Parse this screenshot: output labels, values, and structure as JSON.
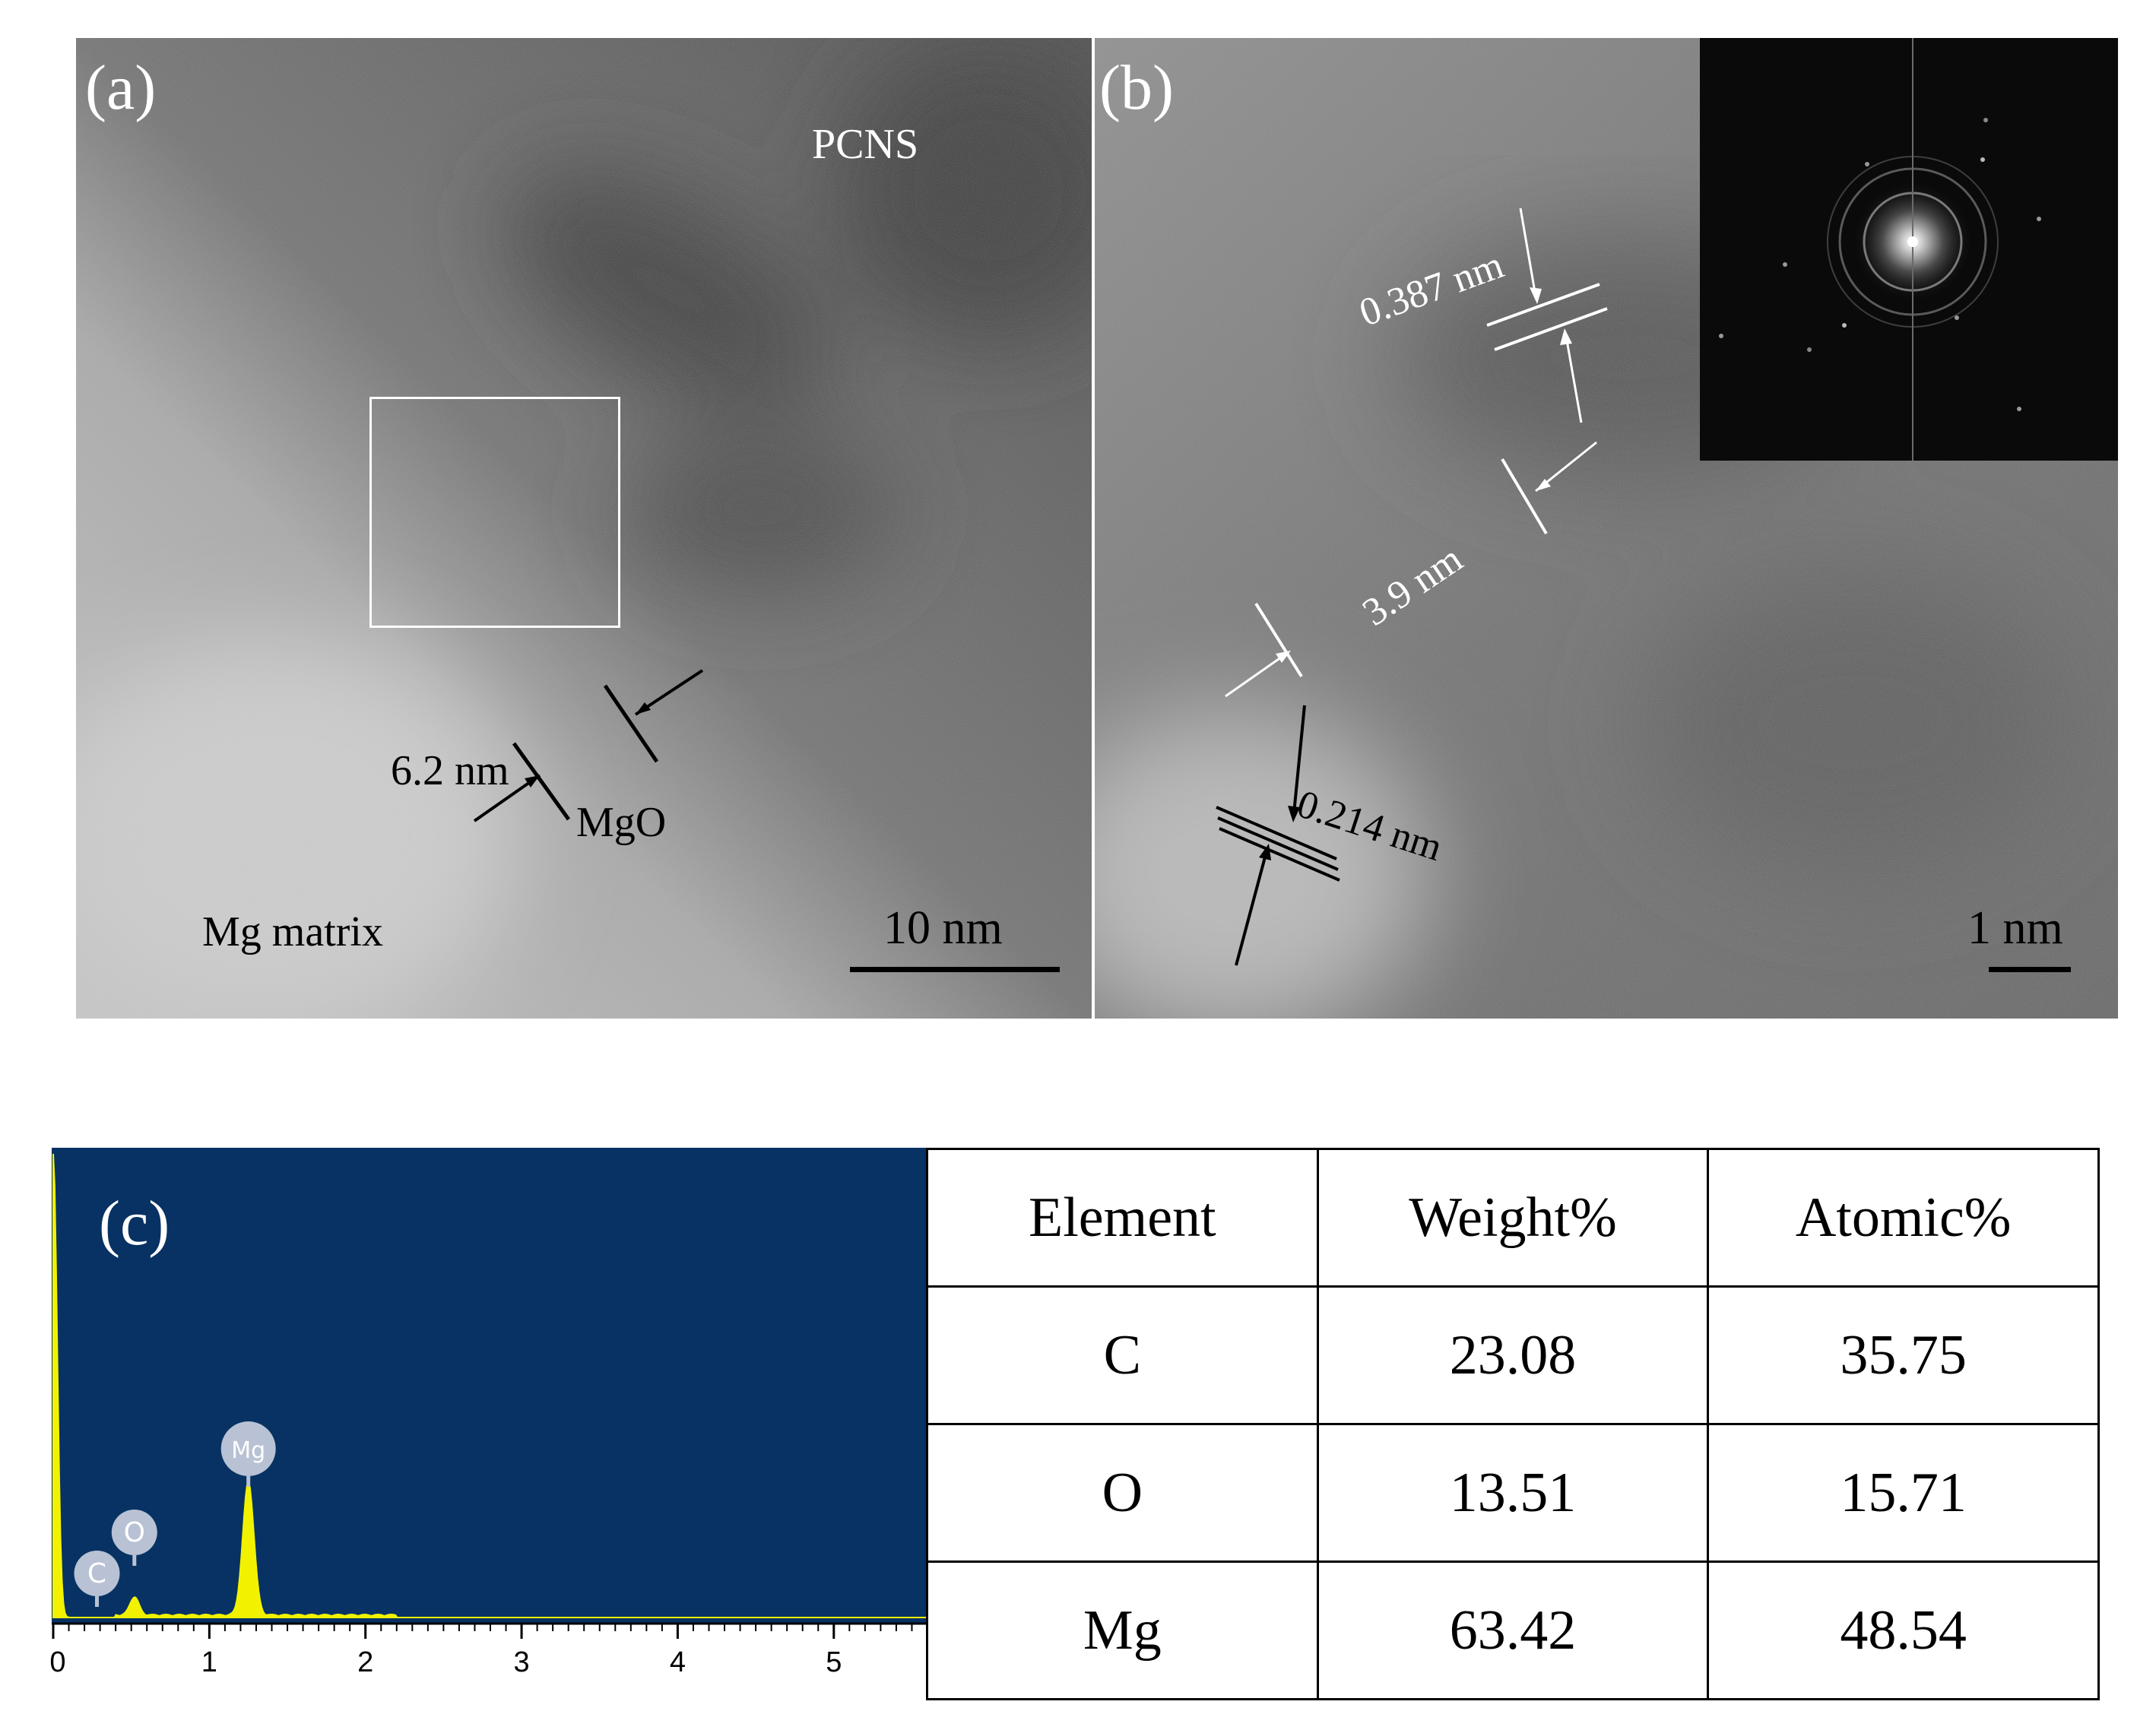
{
  "panel_a": {
    "label": "(a)",
    "pcns_label": "PCNS",
    "thickness_label": "6.2 nm",
    "oxide_label": "MgO",
    "matrix_label": "Mg matrix",
    "scale_bar_label": "10 nm"
  },
  "panel_b": {
    "label": "(b)",
    "spacing_top": "0.387 nm",
    "thickness_label": "3.9 nm",
    "spacing_bottom": "0.214 nm",
    "scale_bar_label": "1 nm"
  },
  "panel_c": {
    "label": "(c)",
    "chart_data": {
      "type": "line",
      "x_ticks": [
        "0",
        "1",
        "2",
        "3",
        "4",
        "5"
      ],
      "xlim": [
        0,
        5.6
      ],
      "peaks": [
        {
          "element": "C",
          "energy": 0.28
        },
        {
          "element": "O",
          "energy": 0.52
        },
        {
          "element": "Mg",
          "energy": 1.25
        }
      ],
      "background_color": "#073263",
      "spectrum_color": "#f2f200"
    }
  },
  "table": {
    "headers": [
      "Element",
      "Weight%",
      "Atomic%"
    ],
    "rows": [
      [
        "C",
        "23.08",
        "35.75"
      ],
      [
        "O",
        "13.51",
        "15.71"
      ],
      [
        "Mg",
        "63.42",
        "48.54"
      ]
    ]
  }
}
